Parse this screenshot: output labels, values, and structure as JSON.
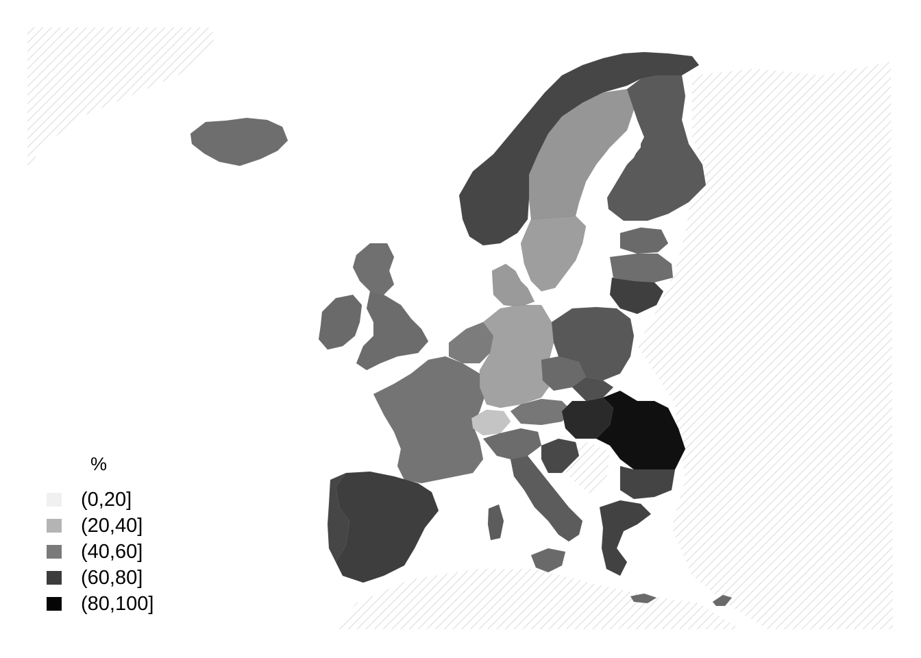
{
  "legend": {
    "title": "%",
    "items": [
      {
        "label": "(0,20]",
        "color": "#f0f0f0"
      },
      {
        "label": "(20,40]",
        "color": "#b4b4b4"
      },
      {
        "label": "(40,60]",
        "color": "#7a7a7a"
      },
      {
        "label": "(60,80]",
        "color": "#3c3c3c"
      },
      {
        "label": "(80,100]",
        "color": "#050505"
      }
    ]
  },
  "colors": {
    "hatch": "#dcdcdc",
    "background": "#ffffff"
  }
}
